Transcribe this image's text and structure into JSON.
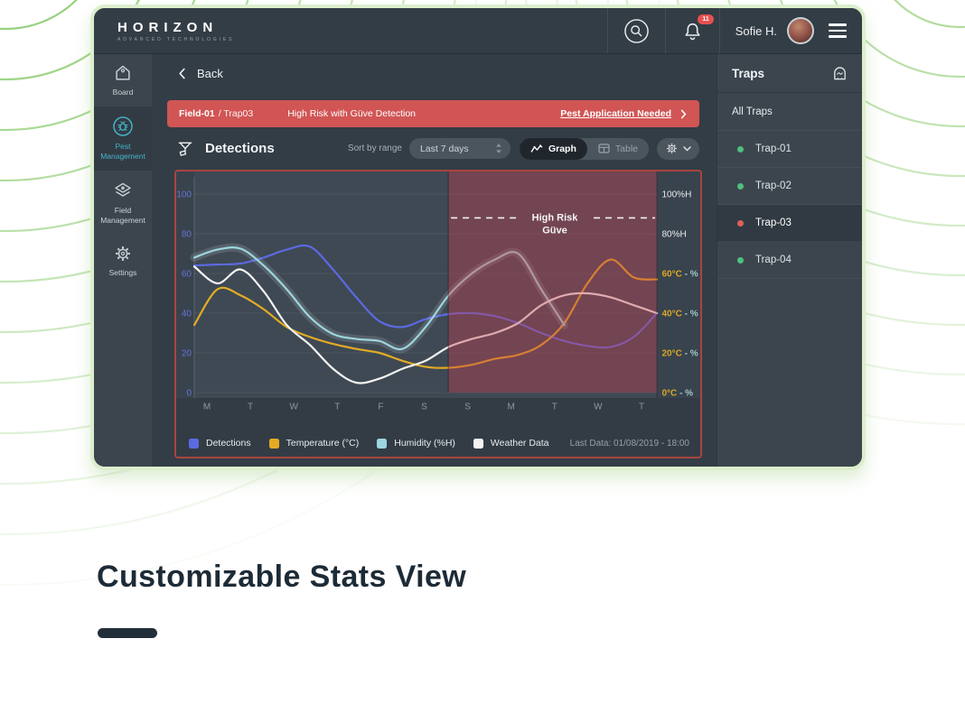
{
  "topbar": {
    "logo": "HORIZON",
    "logo_subtitle": "ADVANCED TECHNOLOGIES",
    "user_name": "Sofie H.",
    "notification_count": "11"
  },
  "sidebar": {
    "items": [
      {
        "label": "Board",
        "icon": "home",
        "active": false
      },
      {
        "label": "Pest Management",
        "icon": "pest",
        "active": true
      },
      {
        "label": "Field Management",
        "icon": "field",
        "active": false
      },
      {
        "label": "Settings",
        "icon": "gear",
        "active": false
      }
    ]
  },
  "main": {
    "back_label": "Back",
    "alert": {
      "location_primary": "Field-01",
      "location_secondary": "/ Trap03",
      "message": "High Risk with Güve Detection",
      "action_label": "Pest Application Needed"
    },
    "toolbar": {
      "title": "Detections",
      "sort_label": "Sort by range",
      "range_value": "Last 7 days",
      "view_graph_label": "Graph",
      "view_table_label": "Table"
    }
  },
  "traps_panel": {
    "title": "Traps",
    "all_traps_label": "All Traps",
    "items": [
      {
        "name": "Trap-01",
        "status": "ok",
        "selected": false
      },
      {
        "name": "Trap-02",
        "status": "ok",
        "selected": false
      },
      {
        "name": "Trap-03",
        "status": "alert",
        "selected": true
      },
      {
        "name": "Trap-04",
        "status": "ok",
        "selected": false
      }
    ]
  },
  "chart_data": {
    "type": "line",
    "x_labels": [
      "M",
      "T",
      "W",
      "T",
      "F",
      "S",
      "S",
      "M",
      "T",
      "W",
      "T"
    ],
    "y_left_ticks": [
      0,
      20,
      40,
      60,
      80,
      100
    ],
    "y_right_labels": [
      "100%H",
      "80%H",
      "60°C - %",
      "40°C - %",
      "20°C - %",
      "0°C - %"
    ],
    "ylim": [
      0,
      100
    ],
    "grid": true,
    "high_risk_zone": {
      "label_line1": "High Risk",
      "label_line2": "Güve",
      "level": 88,
      "start_frac": 0.549
    },
    "series": [
      {
        "name": "Detections",
        "color": "#5b6ae0",
        "values": [
          64,
          64.5,
          65,
          68,
          72,
          73.5,
          62,
          48,
          36,
          33,
          37,
          39.5,
          40,
          38.5,
          35,
          30,
          26,
          23.5,
          23,
          28,
          40
        ]
      },
      {
        "name": "Temperature (°C)",
        "color": "#e3ab24",
        "values": [
          34,
          52,
          49,
          42,
          33,
          28,
          24.5,
          22,
          20,
          16,
          13,
          12.5,
          14,
          17,
          19,
          24,
          35,
          55,
          67,
          58,
          57
        ]
      },
      {
        "name": "Humidity (%H)",
        "color": "#9dd6de",
        "halo": true,
        "values": [
          68,
          72,
          72.5,
          64,
          52,
          38,
          29.5,
          27,
          26,
          22,
          33,
          49,
          60,
          67,
          70,
          52,
          34,
          null,
          null,
          null,
          null
        ]
      },
      {
        "name": "Weather Data",
        "color": "#f4f3f2",
        "values": [
          63.5,
          55,
          62,
          51,
          34,
          24,
          12,
          5,
          7,
          12,
          16,
          23,
          27,
          30,
          35,
          44,
          49,
          50,
          48,
          44,
          40
        ]
      }
    ],
    "last_data_label": "Last Data: 01/08/2019 - 18:00"
  },
  "caption": {
    "title": "Customizable Stats View"
  },
  "colors": {
    "accent_teal": "#44b2c6",
    "alert_red": "#d15555",
    "status_ok": "#4fbf7f",
    "status_alert": "#e25f5c",
    "risk_overlay": "rgba(196,62,78,0.40)",
    "axis_left": "#6673d8",
    "temp_label": "#d9a826",
    "humidity_label": "#9fc6ce",
    "x_label": "#8d97a0",
    "right_label_white": "#e9edf0",
    "arc_green": "#6fbf4c"
  }
}
